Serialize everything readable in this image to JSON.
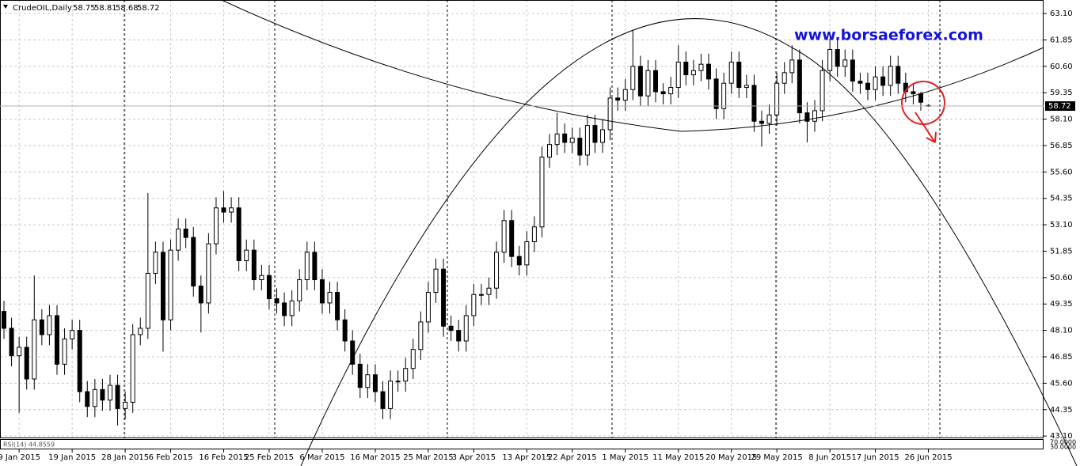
{
  "chart_data": {
    "type": "candlestick",
    "title": "CrudeOIL,Daily",
    "watermark": "www.borsaeforex.com",
    "rsi_title": "RSI(14) 44.8559",
    "rsi_levels": [
      {
        "value": 70,
        "label": "70.0000"
      },
      {
        "value": 30,
        "label": "30.0000"
      }
    ],
    "current_price": 58.72,
    "grid": true,
    "up_color": "#ffffff",
    "down_color": "#000000",
    "categories": [
      null,
      null,
      "9 Jan 2015",
      null,
      null,
      null,
      null,
      null,
      null,
      "19 Jan 2015",
      null,
      null,
      null,
      null,
      null,
      null,
      "28 Jan 2015",
      null,
      null,
      null,
      null,
      null,
      "6 Feb 2015",
      null,
      null,
      null,
      null,
      null,
      null,
      "16 Feb 2015",
      null,
      null,
      null,
      null,
      null,
      "25 Feb 2015",
      null,
      null,
      null,
      null,
      null,
      null,
      "6 Mar 2015",
      null,
      null,
      null,
      null,
      null,
      null,
      "16 Mar 2015",
      null,
      null,
      null,
      null,
      null,
      null,
      "25 Mar 2015",
      null,
      null,
      null,
      null,
      null,
      "3 Apr 2015",
      null,
      null,
      null,
      null,
      null,
      null,
      "13 Apr 2015",
      null,
      null,
      null,
      null,
      null,
      "22 Apr 2015",
      null,
      null,
      null,
      null,
      null,
      null,
      "1 May 2015",
      null,
      null,
      null,
      null,
      null,
      null,
      "11 May 2015",
      null,
      null,
      null,
      null,
      null,
      null,
      "20 May 2015",
      null,
      null,
      null,
      null,
      null,
      "29 May 2015",
      null,
      null,
      null,
      null,
      null,
      null,
      "8 Jun 2015",
      null,
      null,
      null,
      null,
      null,
      "17 Jun 2015",
      null,
      null,
      null,
      null,
      null,
      null,
      "26 Jun 2015"
    ],
    "open": [
      49.0,
      48.2,
      46.9,
      47.3,
      45.8,
      48.6,
      47.9,
      48.8,
      46.5,
      47.7,
      48.1,
      45.2,
      44.5,
      45.3,
      44.8,
      45.5,
      44.4,
      44.7,
      47.9,
      48.2,
      50.8,
      51.8,
      48.6,
      51.9,
      52.9,
      52.5,
      50.2,
      49.4,
      52.2,
      53.9,
      53.7,
      53.9,
      51.4,
      51.9,
      50.5,
      50.7,
      49.6,
      49.4,
      48.8,
      49.5,
      50.5,
      51.8,
      50.5,
      49.4,
      49.9,
      48.6,
      47.6,
      46.5,
      45.4,
      46.0,
      45.2,
      44.4,
      45.7,
      45.7,
      46.3,
      47.2,
      48.5,
      49.9,
      51.0,
      48.3,
      48.1,
      47.6,
      48.8,
      49.8,
      49.8,
      50.1,
      51.8,
      53.3,
      51.6,
      51.2,
      52.3,
      53.0,
      56.3,
      56.9,
      57.4,
      57.0,
      57.2,
      56.4,
      57.8,
      57.0,
      57.6,
      59.1,
      59.0,
      59.5,
      60.6,
      59.2,
      60.4,
      59.4,
      59.3,
      59.6,
      60.8,
      60.2,
      60.4,
      60.7,
      60.0,
      58.6,
      59.8,
      60.8,
      59.6,
      59.7,
      58.0,
      57.9,
      58.3,
      59.8,
      60.3,
      60.9,
      58.4,
      58.0,
      58.5,
      60.4,
      61.4,
      60.6,
      60.9,
      59.9,
      59.8,
      59.5,
      60.1,
      59.7,
      60.6,
      59.8,
      59.4,
      59.3,
      58.75
    ],
    "high": [
      49.5,
      48.7,
      47.8,
      47.8,
      50.7,
      49.1,
      49.3,
      49.3,
      48.2,
      48.6,
      48.6,
      45.7,
      45.8,
      45.8,
      46.0,
      46.0,
      45.2,
      48.4,
      48.7,
      54.6,
      52.3,
      52.3,
      52.4,
      53.4,
      53.4,
      53.0,
      50.7,
      52.7,
      54.4,
      54.7,
      54.4,
      54.4,
      52.4,
      52.4,
      51.2,
      51.2,
      50.1,
      49.9,
      50.0,
      51.0,
      52.3,
      52.3,
      51.0,
      50.4,
      50.4,
      49.1,
      48.1,
      47.0,
      46.5,
      46.5,
      45.7,
      46.2,
      46.2,
      46.8,
      47.7,
      49.0,
      50.4,
      51.5,
      51.5,
      48.8,
      48.6,
      49.3,
      50.3,
      50.3,
      50.6,
      52.3,
      53.8,
      53.8,
      52.1,
      52.8,
      53.5,
      56.8,
      57.4,
      58.4,
      57.9,
      57.7,
      57.7,
      58.3,
      58.3,
      58.1,
      59.6,
      59.6,
      60.0,
      62.3,
      61.1,
      60.9,
      60.9,
      59.8,
      60.1,
      61.6,
      61.3,
      60.9,
      61.2,
      61.2,
      60.5,
      60.3,
      61.3,
      61.3,
      60.2,
      60.2,
      58.5,
      58.8,
      60.3,
      60.8,
      61.6,
      61.4,
      58.9,
      59.0,
      60.9,
      61.9,
      61.9,
      61.4,
      61.4,
      60.3,
      60.3,
      60.6,
      60.6,
      61.1,
      61.1,
      60.3,
      59.8,
      59.4,
      58.81
    ],
    "low": [
      47.7,
      46.4,
      44.2,
      45.3,
      45.3,
      47.4,
      47.4,
      46.0,
      46.0,
      47.2,
      44.7,
      44.0,
      44.0,
      44.3,
      44.3,
      43.6,
      43.9,
      44.2,
      47.4,
      47.7,
      50.3,
      47.1,
      48.1,
      51.4,
      52.0,
      49.7,
      48.0,
      48.9,
      51.7,
      53.2,
      53.2,
      50.9,
      50.9,
      50.0,
      50.0,
      49.1,
      48.9,
      48.3,
      48.3,
      49.0,
      50.0,
      50.0,
      48.9,
      48.9,
      48.1,
      47.1,
      46.0,
      44.9,
      44.9,
      44.7,
      43.9,
      43.9,
      45.2,
      45.2,
      45.8,
      46.7,
      48.0,
      49.4,
      47.8,
      47.6,
      47.1,
      47.1,
      48.3,
      49.3,
      49.3,
      49.6,
      51.3,
      51.1,
      50.7,
      50.7,
      51.8,
      52.5,
      55.8,
      56.4,
      56.5,
      56.5,
      55.9,
      55.9,
      56.5,
      56.5,
      57.1,
      58.5,
      58.5,
      59.0,
      58.7,
      58.7,
      58.9,
      58.8,
      58.8,
      59.1,
      59.7,
      59.7,
      59.9,
      59.5,
      58.1,
      58.1,
      59.3,
      59.1,
      59.1,
      57.5,
      56.8,
      57.4,
      57.8,
      59.3,
      59.8,
      57.9,
      57.0,
      57.5,
      58.0,
      59.9,
      60.1,
      60.1,
      59.4,
      59.3,
      59.0,
      59.0,
      59.2,
      59.2,
      59.3,
      58.9,
      58.8,
      58.5,
      58.68
    ],
    "close": [
      48.2,
      46.9,
      47.3,
      45.8,
      48.6,
      47.9,
      48.8,
      46.5,
      47.7,
      48.1,
      45.2,
      44.5,
      45.3,
      44.8,
      45.5,
      44.4,
      44.7,
      47.9,
      48.2,
      50.8,
      51.8,
      48.6,
      51.9,
      52.9,
      52.5,
      50.2,
      49.4,
      52.2,
      53.9,
      53.7,
      53.9,
      51.4,
      51.9,
      50.5,
      50.7,
      49.6,
      49.4,
      48.8,
      49.5,
      50.5,
      51.8,
      50.5,
      49.4,
      49.9,
      48.6,
      47.6,
      46.5,
      45.4,
      46.0,
      45.2,
      44.4,
      45.7,
      45.7,
      46.3,
      47.2,
      48.5,
      49.9,
      51.0,
      48.3,
      48.1,
      47.6,
      48.8,
      49.8,
      49.8,
      50.1,
      51.8,
      53.3,
      51.6,
      51.2,
      52.3,
      53.0,
      56.3,
      56.9,
      57.4,
      57.0,
      57.2,
      56.4,
      57.8,
      57.0,
      57.6,
      59.1,
      59.0,
      59.5,
      60.6,
      59.2,
      60.4,
      59.4,
      59.3,
      59.6,
      60.8,
      60.2,
      60.4,
      60.7,
      60.0,
      58.6,
      59.8,
      60.8,
      59.6,
      59.7,
      58.0,
      57.9,
      58.3,
      59.8,
      60.3,
      60.9,
      58.4,
      58.0,
      58.5,
      60.4,
      61.4,
      60.6,
      60.9,
      59.9,
      59.8,
      59.5,
      60.1,
      59.7,
      60.6,
      59.8,
      59.4,
      59.3,
      58.9,
      58.72
    ],
    "ylim": [
      43.03,
      63.74
    ],
    "yticks": [
      {
        "value": 63.1,
        "label": "63.10"
      },
      61.85,
      {
        "value": 60.6,
        "label": "60.60"
      },
      59.35,
      {
        "value": 58.1,
        "label": "58.10"
      },
      56.85,
      {
        "value": 55.6,
        "label": "55.60"
      },
      54.35,
      {
        "value": 53.1,
        "label": "53.10"
      },
      51.85,
      {
        "value": 50.6,
        "label": "50.60"
      },
      49.35,
      {
        "value": 48.1,
        "label": "48.10"
      },
      46.85,
      {
        "value": 45.6,
        "label": "45.60"
      },
      44.35,
      {
        "value": 43.1,
        "label": "43.10"
      }
    ]
  }
}
